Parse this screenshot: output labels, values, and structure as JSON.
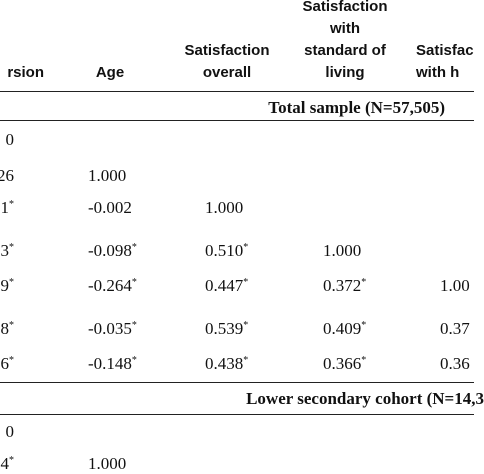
{
  "header": {
    "columns": [
      [
        "rsion"
      ],
      [
        "Age"
      ],
      [
        "Satisfaction",
        "overall"
      ],
      [
        "Satisfaction",
        "with",
        "standard of",
        "living"
      ],
      [
        "Satisfac",
        "with h"
      ]
    ]
  },
  "sections": [
    {
      "title": "Total sample (N=57,505)",
      "rows": [
        [
          {
            "v": "0"
          },
          null,
          null,
          null,
          null
        ],
        [
          {
            "v": "26"
          },
          {
            "v": "1.000"
          },
          null,
          null,
          null
        ],
        [
          {
            "v": "1",
            "sup": "*"
          },
          {
            "v": "-0.002"
          },
          {
            "v": "1.000"
          },
          null,
          null
        ],
        [
          {
            "v": "3",
            "sup": "*"
          },
          {
            "v": "-0.098",
            "sup": "*"
          },
          {
            "v": "0.510",
            "sup": "*"
          },
          {
            "v": "1.000"
          },
          null
        ],
        [
          {
            "v": "9",
            "sup": "*"
          },
          {
            "v": "-0.264",
            "sup": "*"
          },
          {
            "v": "0.447",
            "sup": "*"
          },
          {
            "v": "0.372",
            "sup": "*"
          },
          {
            "v": "1.00"
          }
        ],
        [
          {
            "v": "8",
            "sup": "*"
          },
          {
            "v": "-0.035",
            "sup": "*"
          },
          {
            "v": "0.539",
            "sup": "*"
          },
          {
            "v": "0.409",
            "sup": "*"
          },
          {
            "v": "0.37"
          }
        ],
        [
          {
            "v": "6",
            "sup": "*"
          },
          {
            "v": "-0.148",
            "sup": "*"
          },
          {
            "v": "0.438",
            "sup": "*"
          },
          {
            "v": "0.366",
            "sup": "*"
          },
          {
            "v": "0.36"
          }
        ]
      ]
    },
    {
      "title": "Lower secondary cohort (N=14,3",
      "rows": [
        [
          {
            "v": "0"
          },
          null,
          null,
          null,
          null
        ],
        [
          {
            "v": "4",
            "sup": "*"
          },
          {
            "v": "1.000"
          },
          null,
          null,
          null
        ]
      ]
    }
  ]
}
